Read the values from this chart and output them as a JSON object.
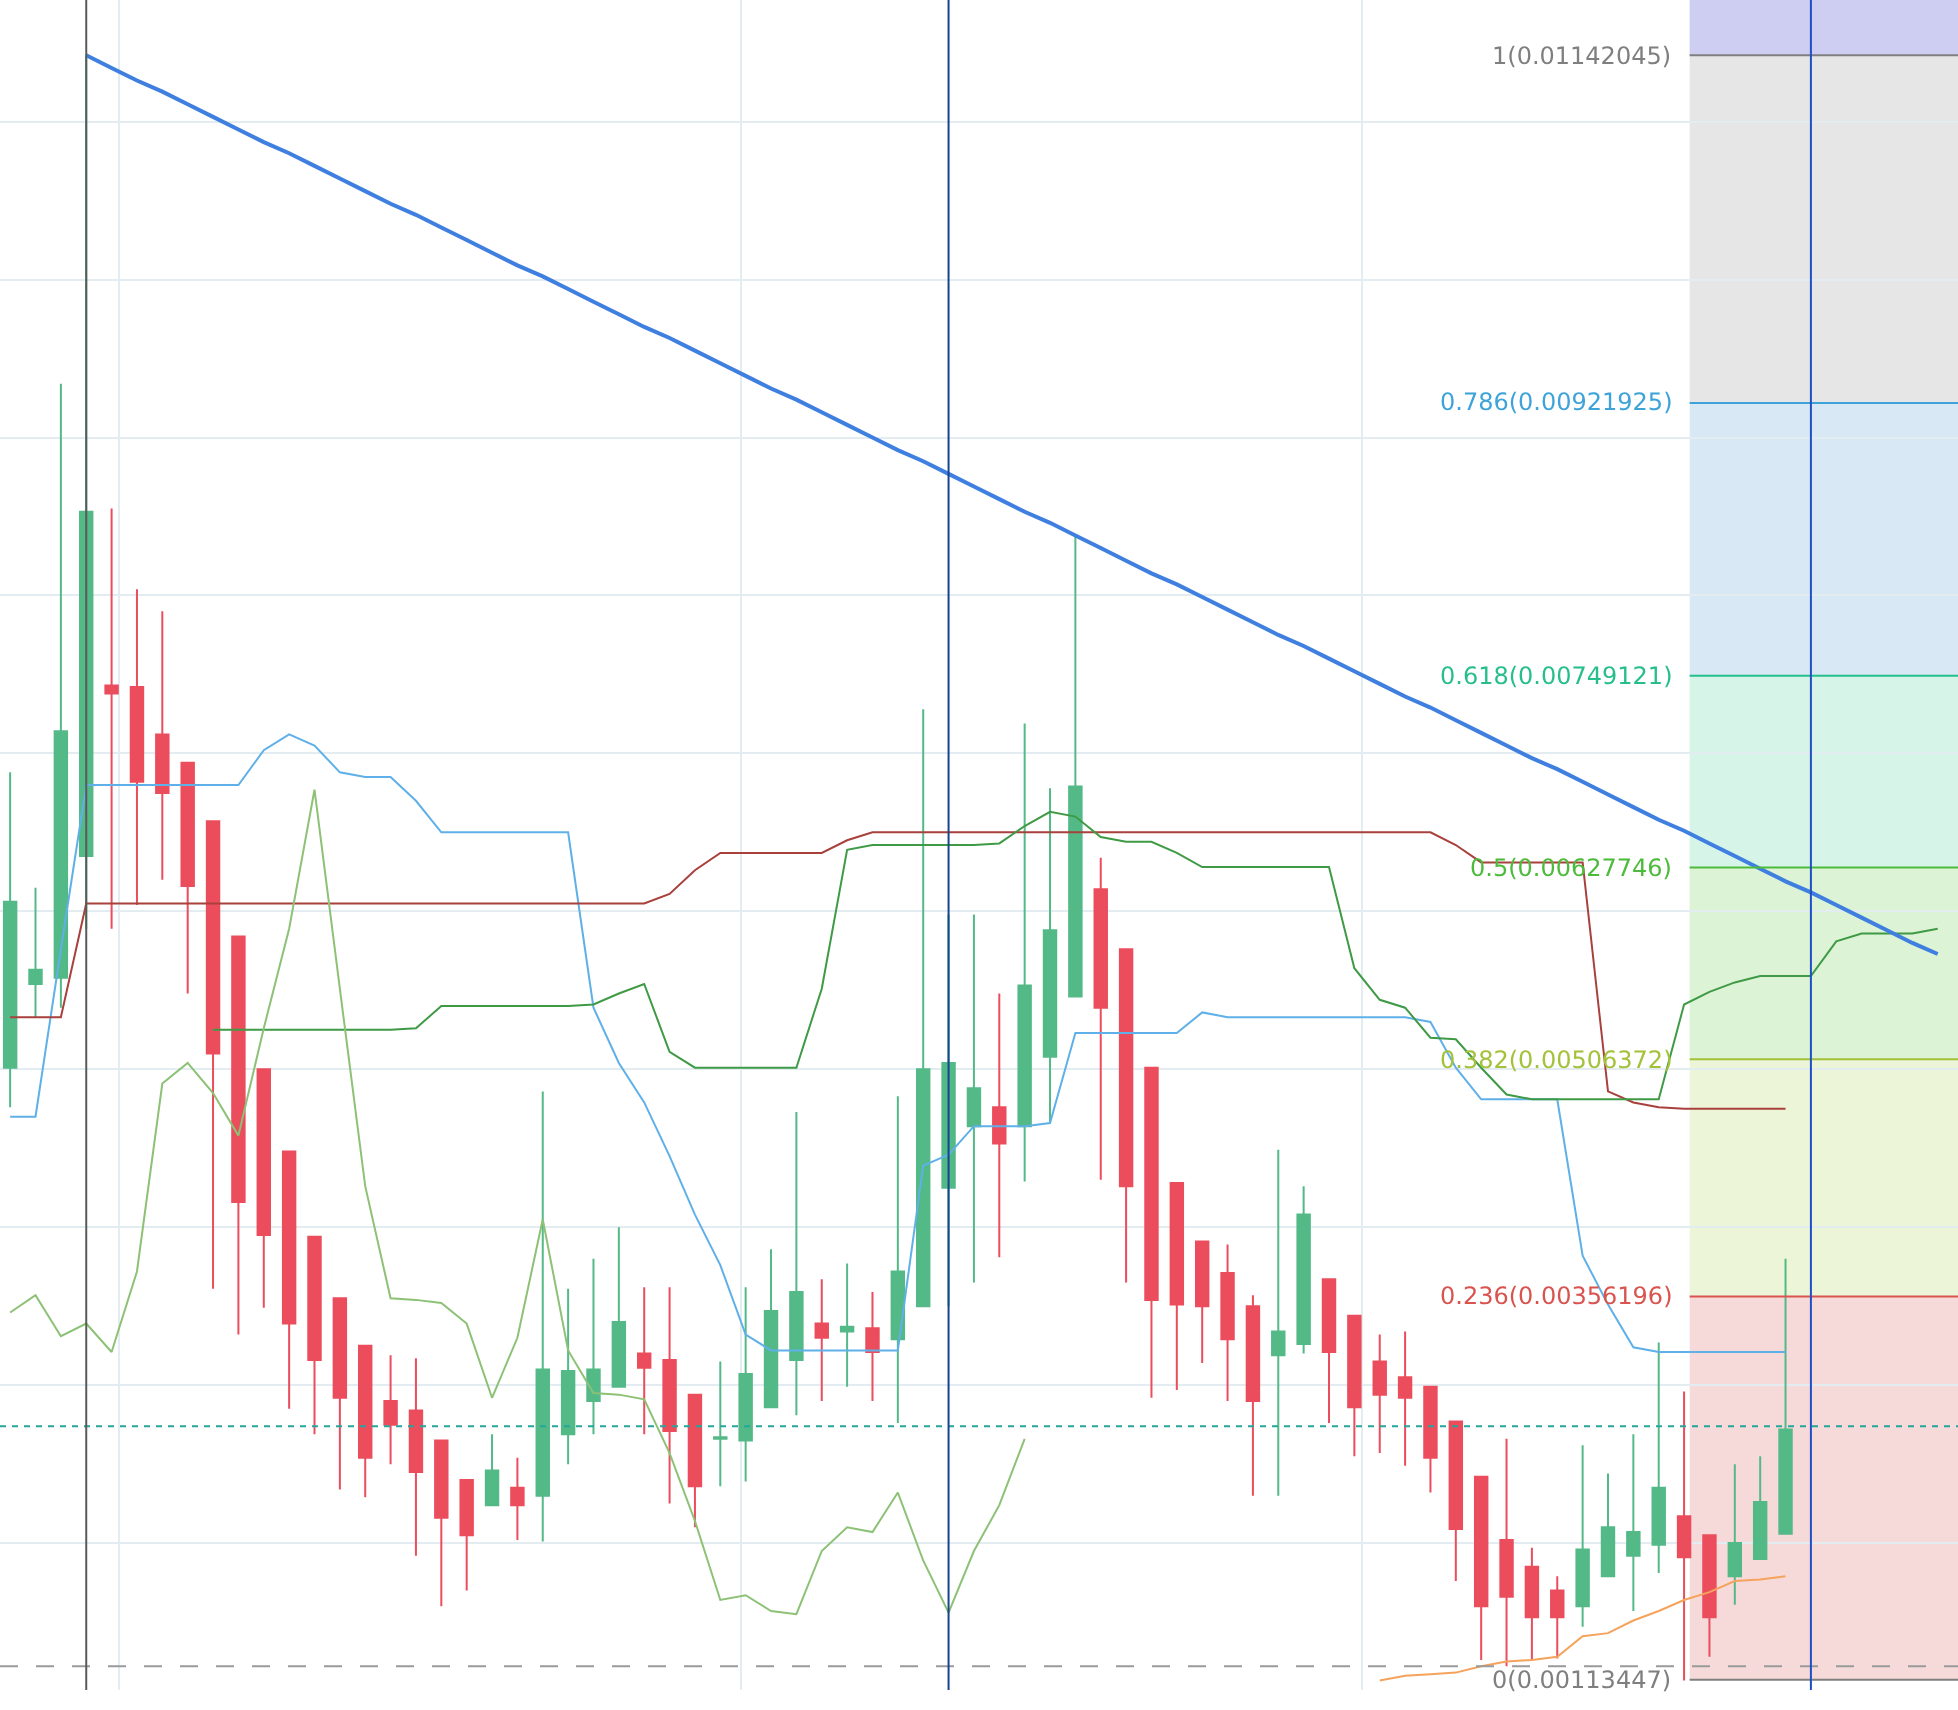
{
  "chart_data": {
    "type": "candlestick",
    "categories": [
      null,
      null,
      null,
      null,
      null,
      null,
      null,
      null,
      null,
      null,
      null,
      null,
      null,
      null,
      null,
      null,
      null,
      null,
      null,
      null,
      null,
      null,
      null,
      null,
      null,
      null,
      null,
      null,
      null,
      null,
      null,
      null,
      null,
      null,
      null,
      null,
      null,
      null,
      null,
      null,
      null,
      null,
      null,
      null,
      null,
      null,
      null,
      null,
      null,
      null,
      null,
      null,
      null,
      null,
      null,
      null,
      null,
      null,
      null,
      null,
      null,
      null,
      null,
      null,
      null,
      null,
      null,
      null,
      null,
      null,
      null,
      null,
      null,
      null,
      null,
      null,
      null
    ],
    "ohlc": [
      [
        0.00501,
        0.00688,
        0.00476,
        0.00606
      ],
      [
        0.00554,
        0.00615,
        0.00533,
        0.00563
      ],
      [
        0.00558,
        0.00934,
        0.00539,
        0.00714
      ],
      [
        0.00635,
        0.01142,
        0.00589,
        0.00853
      ],
      [
        0.00743,
        0.00855,
        0.00589,
        0.00738
      ],
      [
        0.00742,
        0.00804,
        0.00604,
        0.00682
      ],
      [
        0.00712,
        0.0079,
        0.0062,
        0.00675
      ],
      [
        0.00694,
        0.00694,
        0.00548,
        0.00616
      ],
      [
        0.00657,
        0.00657,
        0.00361,
        0.0051
      ],
      [
        0.00584,
        0.00584,
        0.00332,
        0.00416
      ],
      [
        0.005,
        0.005,
        0.00349,
        0.00395
      ],
      [
        0.00448,
        0.00448,
        0.00285,
        0.00339
      ],
      [
        0.00394,
        0.00394,
        0.00269,
        0.00316
      ],
      [
        0.00355,
        0.00355,
        0.00234,
        0.00292
      ],
      [
        0.00325,
        0.00325,
        0.00229,
        0.00254
      ],
      [
        0.0029,
        0.00319,
        0.0025,
        0.00275
      ],
      [
        0.00284,
        0.00317,
        0.00192,
        0.00245
      ],
      [
        0.00265,
        0.00265,
        0.0016,
        0.00216
      ],
      [
        0.0024,
        0.0024,
        0.0017,
        0.00205
      ],
      [
        0.00224,
        0.00269,
        0.00224,
        0.00246
      ],
      [
        0.00235,
        0.00254,
        0.00202,
        0.00224
      ],
      [
        0.0023,
        0.00486,
        0.00201,
        0.0031
      ],
      [
        0.00269,
        0.00361,
        0.0025,
        0.00309
      ],
      [
        0.0029,
        0.0038,
        0.00269,
        0.0031
      ],
      [
        0.00299,
        0.004,
        0.00299,
        0.0034
      ],
      [
        0.0032,
        0.00362,
        0.00269,
        0.00311
      ],
      [
        0.00316,
        0.00362,
        0.00225,
        0.00271
      ],
      [
        0.00294,
        0.00294,
        0.0021,
        0.00236
      ],
      [
        0.00266,
        0.00315,
        0.00236,
        0.00267
      ],
      [
        0.00265,
        0.00362,
        0.00239,
        0.00307
      ],
      [
        0.00286,
        0.00386,
        0.00286,
        0.00347
      ],
      [
        0.00316,
        0.00473,
        0.00281,
        0.00359
      ],
      [
        0.00339,
        0.00367,
        0.0029,
        0.0033
      ],
      [
        0.00334,
        0.00377,
        0.00299,
        0.00337
      ],
      [
        0.00336,
        0.00359,
        0.0029,
        0.00321
      ],
      [
        0.00329,
        0.00483,
        0.00276,
        0.00372
      ],
      [
        0.0035,
        0.00728,
        0.0035,
        0.005
      ],
      [
        0.00425,
        0.00598,
        0.0035,
        0.00504
      ],
      [
        0.00464,
        0.00598,
        0.00365,
        0.00488
      ],
      [
        0.00476,
        0.00548,
        0.00381,
        0.00453
      ],
      [
        0.00464,
        0.00719,
        0.00429,
        0.00553
      ],
      [
        0.00508,
        0.00678,
        0.00466,
        0.00588
      ],
      [
        0.00546,
        0.00837,
        0.00546,
        0.00679
      ],
      [
        0.00614,
        0.00634,
        0.0043,
        0.00539
      ],
      [
        0.00576,
        0.00576,
        0.00365,
        0.00426
      ],
      [
        0.00501,
        0.00501,
        0.00292,
        0.00354
      ],
      [
        0.00428,
        0.00428,
        0.00297,
        0.00351
      ],
      [
        0.00391,
        0.00391,
        0.00314,
        0.0035
      ],
      [
        0.00371,
        0.00389,
        0.0029,
        0.00329
      ],
      [
        0.0035,
        0.00357,
        0.0023,
        0.0029
      ],
      [
        0.00319,
        0.00449,
        0.0023,
        0.00334
      ],
      [
        0.00326,
        0.00426,
        0.0032,
        0.00408
      ],
      [
        0.00367,
        0.00367,
        0.00276,
        0.00321
      ],
      [
        0.00344,
        0.00344,
        0.00255,
        0.00286
      ],
      [
        0.00315,
        0.00332,
        0.00257,
        0.00294
      ],
      [
        0.00305,
        0.00334,
        0.00249,
        0.00292
      ],
      [
        0.00299,
        0.00299,
        0.00232,
        0.00254
      ],
      [
        0.00277,
        0.00277,
        0.00176,
        0.00209
      ],
      [
        0.00242,
        0.00242,
        0.00126,
        0.0016
      ],
      [
        0.00202,
        0.00266,
        0.00122,
        0.00166
      ],
      [
        0.00185,
        0.00197,
        0.00126,
        0.00153
      ],
      [
        0.0017,
        0.00179,
        0.00127,
        0.00153
      ],
      [
        0.0016,
        0.00262,
        0.00147,
        0.00196
      ],
      [
        0.00179,
        0.00244,
        0.00179,
        0.0021
      ],
      [
        0.00192,
        0.00269,
        0.00157,
        0.00207
      ],
      [
        0.00199,
        0.00327,
        0.00181,
        0.00235
      ],
      [
        0.00217,
        0.00296,
        0.00113,
        0.00191
      ],
      [
        0.00205,
        0.00205,
        0.00128,
        0.00153
      ],
      [
        0.00179,
        0.0025,
        0.00161,
        0.002
      ],
      [
        0.0019,
        0.00255,
        0.0019,
        0.00226
      ],
      [
        0.00206,
        0.0038,
        0.00206,
        0.00272
      ],
      null,
      null,
      null,
      null,
      null,
      null
    ],
    "series": [
      {
        "type": "line",
        "color": "#5fb0e8",
        "values": [
          0.0047,
          0.0047,
          0.00576,
          0.0068,
          0.0068,
          0.0068,
          0.0068,
          0.0068,
          0.0068,
          0.0068,
          0.00702,
          0.00712,
          0.00705,
          0.00688,
          0.00685,
          0.00685,
          0.0067,
          0.0065,
          0.0065,
          0.0065,
          0.0065,
          0.0065,
          0.0065,
          0.00539,
          0.00504,
          0.00479,
          0.00445,
          0.00408,
          0.00376,
          0.00332,
          0.00322,
          0.00322,
          0.00322,
          0.00322,
          0.00322,
          0.00322,
          0.00439,
          0.00446,
          0.00464,
          0.00464,
          0.00464,
          0.00466,
          0.00523,
          0.00523,
          0.00523,
          0.00523,
          0.00523,
          0.00536,
          0.00533,
          0.00533,
          0.00533,
          0.00533,
          0.00533,
          0.00533,
          0.00533,
          0.00533,
          0.0053,
          0.00501,
          0.00481,
          0.00481,
          0.00481,
          0.00481,
          0.00382,
          0.00351,
          0.00324,
          0.00321,
          0.00321,
          0.00321,
          0.00321,
          0.00321,
          0.00321,
          null,
          null,
          null,
          null,
          null,
          null
        ]
      },
      {
        "type": "line",
        "color": "#a8403c",
        "values": [
          0.00533,
          0.00533,
          0.00533,
          0.00605,
          0.00605,
          0.00605,
          0.00605,
          0.00605,
          0.00605,
          0.00605,
          0.00605,
          0.00605,
          0.00605,
          0.00605,
          0.00605,
          0.00605,
          0.00605,
          0.00605,
          0.00605,
          0.00605,
          0.00605,
          0.00605,
          0.00605,
          0.00605,
          0.00605,
          0.00605,
          0.00611,
          0.00626,
          0.00637,
          0.00637,
          0.00637,
          0.00637,
          0.00637,
          0.00645,
          0.0065,
          0.0065,
          0.0065,
          0.0065,
          0.0065,
          0.0065,
          0.0065,
          0.0065,
          0.0065,
          0.0065,
          0.0065,
          0.0065,
          0.0065,
          0.0065,
          0.0065,
          0.0065,
          0.0065,
          0.0065,
          0.0065,
          0.0065,
          0.0065,
          0.0065,
          0.0065,
          0.00642,
          0.00631,
          0.00631,
          0.00631,
          0.00631,
          0.00631,
          0.00486,
          0.00479,
          0.00476,
          0.00475,
          0.00475,
          0.00475,
          0.00475,
          0.00475,
          null,
          null,
          null,
          null,
          null,
          null
        ]
      },
      {
        "type": "line",
        "color": "#3f9a45",
        "values": [
          null,
          null,
          null,
          null,
          null,
          null,
          null,
          null,
          0.00525,
          0.00525,
          0.00525,
          0.00525,
          0.00525,
          0.00525,
          0.00525,
          0.00525,
          0.00526,
          0.0054,
          0.0054,
          0.0054,
          0.0054,
          0.0054,
          0.0054,
          0.00541,
          0.00548,
          0.00554,
          0.00511,
          0.00501,
          0.00501,
          0.00501,
          0.00501,
          0.00501,
          0.00551,
          0.00639,
          0.00642,
          0.00642,
          0.00642,
          0.00642,
          0.00642,
          0.00643,
          0.00654,
          0.00663,
          0.0066,
          0.00647,
          0.00644,
          0.00644,
          0.00637,
          0.00628,
          0.00628,
          0.00628,
          0.00628,
          0.00628,
          0.00628,
          0.00564,
          0.00544,
          0.00539,
          0.0052,
          0.00519,
          0.00501,
          0.00484,
          0.00481,
          0.00481,
          0.00481,
          0.00481,
          0.00481,
          0.00481,
          0.00541,
          0.00549,
          0.00555,
          0.00559,
          0.00559,
          0.00559,
          0.00581,
          0.00586,
          0.00586,
          0.00586,
          0.00589
        ]
      },
      {
        "type": "line",
        "color": "#8cc176",
        "values": [
          0.00346,
          0.00357,
          0.00331,
          0.00339,
          0.00321,
          0.00372,
          0.00491,
          0.00504,
          0.00485,
          0.00458,
          0.00526,
          0.00589,
          0.00677,
          0.00551,
          0.00426,
          0.00355,
          0.00354,
          0.00352,
          0.00339,
          0.00292,
          0.0033,
          0.00405,
          0.00322,
          0.00295,
          0.00294,
          0.00291,
          0.00257,
          0.00214,
          0.00164,
          0.00167,
          0.00157,
          0.00155,
          0.00195,
          0.0021,
          0.00207,
          0.00232,
          0.00189,
          0.00156,
          0.00195,
          0.00224,
          0.00266,
          null,
          null,
          null,
          null,
          null,
          null,
          null,
          null,
          null,
          null,
          null,
          null,
          null,
          null,
          null,
          null,
          null,
          null,
          null,
          null,
          null,
          null,
          null,
          null,
          null,
          null,
          null,
          null,
          null,
          null,
          null,
          null,
          null,
          null,
          null,
          null
        ]
      },
      {
        "type": "line",
        "color": "#f5a35c",
        "values": [
          null,
          null,
          null,
          null,
          null,
          null,
          null,
          null,
          null,
          null,
          null,
          null,
          null,
          null,
          null,
          null,
          null,
          null,
          null,
          null,
          null,
          null,
          null,
          null,
          null,
          null,
          null,
          null,
          null,
          null,
          null,
          null,
          null,
          null,
          null,
          null,
          null,
          null,
          null,
          null,
          null,
          null,
          null,
          null,
          null,
          null,
          null,
          null,
          null,
          null,
          null,
          null,
          null,
          null,
          0.00113,
          0.00116,
          0.00117,
          0.00118,
          0.00122,
          0.00125,
          0.00126,
          0.00128,
          0.00141,
          0.00143,
          0.00151,
          0.00157,
          0.00164,
          0.00169,
          0.00176,
          0.00177,
          0.00179,
          null,
          null,
          null,
          null,
          null,
          null
        ]
      },
      {
        "type": "line",
        "color": "#3f7fe0",
        "values": [
          null,
          null,
          null,
          0.01142,
          0.01134,
          0.01126,
          0.01119,
          0.01111,
          0.01103,
          0.01095,
          0.01087,
          0.0108,
          0.01072,
          0.01064,
          0.01056,
          0.01048,
          0.01041,
          0.01033,
          0.01025,
          0.01017,
          0.01009,
          0.01002,
          0.00994,
          0.00986,
          0.00978,
          0.0097,
          0.00963,
          0.00955,
          0.00947,
          0.00939,
          0.00931,
          0.00924,
          0.00916,
          0.00908,
          0.009,
          0.00892,
          0.00885,
          0.00877,
          0.00869,
          0.00861,
          0.00853,
          0.00846,
          0.00838,
          0.0083,
          0.00822,
          0.00814,
          0.00807,
          0.00799,
          0.00791,
          0.00783,
          0.00775,
          0.00768,
          0.0076,
          0.00752,
          0.00744,
          0.00736,
          0.00729,
          0.00721,
          0.00713,
          0.00705,
          0.00697,
          0.0069,
          0.00682,
          0.00674,
          0.00666,
          0.00658,
          0.00651,
          0.00643,
          0.00635,
          0.00627,
          0.00619,
          0.00612,
          0.00604,
          0.00596,
          0.00588,
          0.0058,
          0.00573
        ]
      }
    ],
    "ylim": [
      0.00107,
      0.01177
    ],
    "grid": true,
    "tick_labels": false,
    "bands": [
      {
        "axis": "y",
        "from": 0.01142045,
        "to": 0.01177,
        "color": "#c9c9f2"
      },
      {
        "axis": "y",
        "from": 0.00921925,
        "to": 0.01142045,
        "color": "#e3e3e3"
      },
      {
        "axis": "y",
        "from": 0.00749121,
        "to": 0.00921925,
        "color": "#d4e7f4"
      },
      {
        "axis": "y",
        "from": 0.00627746,
        "to": 0.00749121,
        "color": "#d2f3e6"
      },
      {
        "axis": "y",
        "from": 0.00506372,
        "to": 0.00627746,
        "color": "#d9f2d2"
      },
      {
        "axis": "y",
        "from": 0.00356196,
        "to": 0.00506372,
        "color": "#ebf4d4"
      },
      {
        "axis": "y",
        "from": 0.00113447,
        "to": 0.00356196,
        "color": "#f5d6d6"
      }
    ],
    "ref_lines": [
      {
        "axis": "y",
        "value": 0.01142045,
        "label": "1(0.01142045)",
        "color": "#7f7f7f"
      },
      {
        "axis": "y",
        "value": 0.00921925,
        "label": "0.786(0.00921925)",
        "color": "#3ea3d8"
      },
      {
        "axis": "y",
        "value": 0.00749121,
        "label": "0.618(0.00749121)",
        "color": "#26bf8c"
      },
      {
        "axis": "y",
        "value": 0.00627746,
        "label": "0.5(0.00627746)",
        "color": "#4cbb3c"
      },
      {
        "axis": "y",
        "value": 0.00506372,
        "label": "0.382(0.00506372)",
        "color": "#a3c23a"
      },
      {
        "axis": "y",
        "value": 0.00356196,
        "label": "0.236(0.00356196)",
        "color": "#d9534f"
      },
      {
        "axis": "y",
        "value": 0.00113447,
        "label": "0(0.00113447)",
        "color": "#7f7f7f"
      },
      {
        "axis": "y",
        "value": 0.00274,
        "color": "#26a69a",
        "line_style": "dotted"
      },
      {
        "axis": "y",
        "value": 0.00122,
        "color": "#9a9a9a",
        "line_style": "dashed"
      }
    ]
  }
}
